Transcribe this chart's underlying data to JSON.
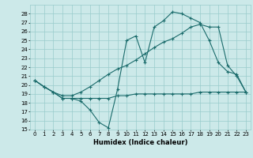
{
  "xlabel": "Humidex (Indice chaleur)",
  "xlim": [
    -0.5,
    23.5
  ],
  "ylim": [
    15,
    29
  ],
  "yticks": [
    15,
    16,
    17,
    18,
    19,
    20,
    21,
    22,
    23,
    24,
    25,
    26,
    27,
    28
  ],
  "xticks": [
    0,
    1,
    2,
    3,
    4,
    5,
    6,
    7,
    8,
    9,
    10,
    11,
    12,
    13,
    14,
    15,
    16,
    17,
    18,
    19,
    20,
    21,
    22,
    23
  ],
  "bg_color": "#cce9e9",
  "grid_color": "#99cccc",
  "line_color": "#1a6b6b",
  "line1_x": [
    0,
    1,
    2,
    3,
    4,
    5,
    6,
    7,
    8,
    9,
    10,
    11,
    12,
    13,
    14,
    15,
    16,
    17,
    18,
    19,
    20,
    21,
    22,
    23
  ],
  "line1_y": [
    20.5,
    19.8,
    19.2,
    18.5,
    18.5,
    18.2,
    17.2,
    15.8,
    15.2,
    19.5,
    25.0,
    25.5,
    22.5,
    26.5,
    27.2,
    28.2,
    28.0,
    27.5,
    27.0,
    25.0,
    22.5,
    21.5,
    21.2,
    19.2
  ],
  "line2_x": [
    0,
    1,
    2,
    3,
    4,
    5,
    6,
    7,
    8,
    9,
    10,
    11,
    12,
    13,
    14,
    15,
    16,
    17,
    18,
    19,
    20,
    21,
    22,
    23
  ],
  "line2_y": [
    20.5,
    19.8,
    19.2,
    18.5,
    18.5,
    18.5,
    18.5,
    18.5,
    18.5,
    18.8,
    18.8,
    19.0,
    19.0,
    19.0,
    19.0,
    19.0,
    19.0,
    19.0,
    19.2,
    19.2,
    19.2,
    19.2,
    19.2,
    19.2
  ],
  "line3_x": [
    0,
    1,
    2,
    3,
    4,
    5,
    6,
    7,
    8,
    9,
    10,
    11,
    12,
    13,
    14,
    15,
    16,
    17,
    18,
    19,
    20,
    21,
    22,
    23
  ],
  "line3_y": [
    20.5,
    19.8,
    19.2,
    18.8,
    18.8,
    19.2,
    19.8,
    20.5,
    21.2,
    21.8,
    22.2,
    22.8,
    23.5,
    24.2,
    24.8,
    25.2,
    25.8,
    26.5,
    26.8,
    26.5,
    26.5,
    22.2,
    21.0,
    19.2
  ]
}
